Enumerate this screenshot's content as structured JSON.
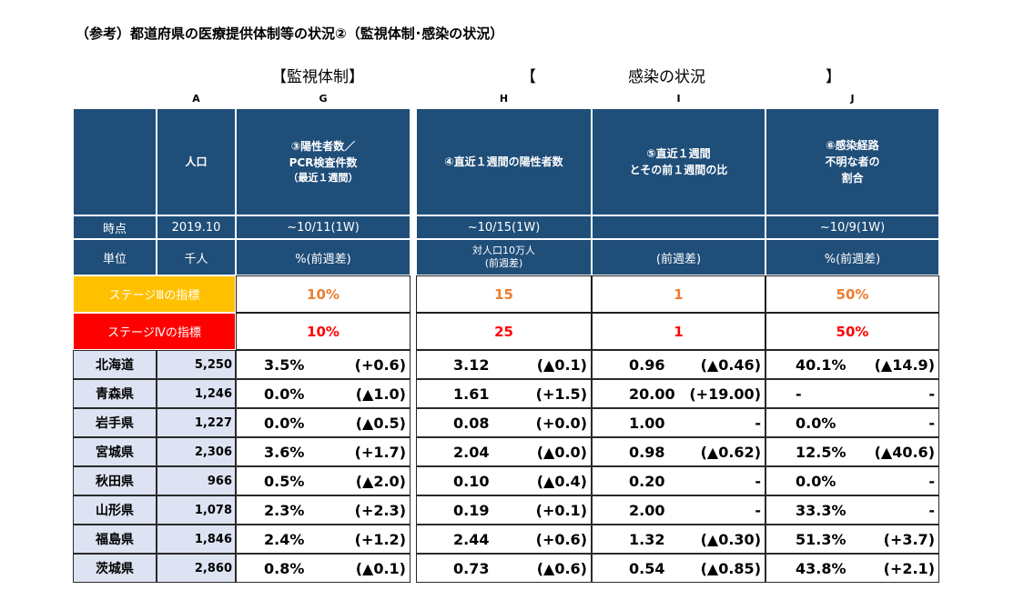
{
  "title": "（参考）都道府県の医療提供体制等の状況②（監視体制･感染の状況）",
  "sections": {
    "kanshi": "【監視体制】",
    "kansen_open": "【",
    "kansen_label": "感染の状況",
    "kansen_close": "】"
  },
  "column_letters": [
    "A",
    "G",
    "H",
    "I",
    "J"
  ],
  "headers": {
    "A": "人口",
    "G_line1": "③陽性者数／",
    "G_line2": "PCR検査件数",
    "G_line3": "（最近１週間）",
    "H": "④直近１週間の陽性者数",
    "I_line1": "⑤直近１週間",
    "I_line2": "とその前１週間の比",
    "J_line1": "⑥感染経路",
    "J_line2": "不明な者の",
    "J_line3": "割合"
  },
  "time_row": {
    "label": "時点",
    "A": "2019.10",
    "G": "~10/11(1W)",
    "H": "~10/15(1W)",
    "I": "",
    "J": "~10/9(1W)"
  },
  "unit_row": {
    "label": "単位",
    "A": "千人",
    "G": "%(前週差)",
    "H_line1": "対人口10万人",
    "H_line2": "(前週差)",
    "I": "(前週差)",
    "J": "%(前週差)"
  },
  "stage3": {
    "label": "ステージⅢの指標",
    "G": "10%",
    "H": "15",
    "I": "1",
    "J": "50%"
  },
  "stage4": {
    "label": "ステージⅣの指標",
    "G": "10%",
    "H": "25",
    "I": "1",
    "J": "50%"
  },
  "rows": [
    {
      "pref": "北海道",
      "pop": "5,250",
      "g": "3.5%",
      "g_diff": "(+0.6)",
      "h": "3.12",
      "h_diff": "(▲0.1)",
      "i": "0.96",
      "i_diff": "(▲0.46)",
      "j": "40.1%",
      "j_diff": "(▲14.9)"
    },
    {
      "pref": "青森県",
      "pop": "1,246",
      "g": "0.0%",
      "g_diff": "(▲1.0)",
      "h": "1.61",
      "h_diff": "(+1.5)",
      "i": "20.00",
      "i_diff": "(+19.00)",
      "j": "-",
      "j_diff": "-"
    },
    {
      "pref": "岩手県",
      "pop": "1,227",
      "g": "0.0%",
      "g_diff": "(▲0.5)",
      "h": "0.08",
      "h_diff": "(+0.0)",
      "i": "1.00",
      "i_diff": "-",
      "j": "0.0%",
      "j_diff": "-"
    },
    {
      "pref": "宮城県",
      "pop": "2,306",
      "g": "3.6%",
      "g_diff": "(+1.7)",
      "h": "2.04",
      "h_diff": "(▲0.0)",
      "i": "0.98",
      "i_diff": "(▲0.62)",
      "j": "12.5%",
      "j_diff": "(▲40.6)"
    },
    {
      "pref": "秋田県",
      "pop": "966",
      "g": "0.5%",
      "g_diff": "(▲2.0)",
      "h": "0.10",
      "h_diff": "(▲0.4)",
      "i": "0.20",
      "i_diff": "-",
      "j": "0.0%",
      "j_diff": "-"
    },
    {
      "pref": "山形県",
      "pop": "1,078",
      "g": "2.3%",
      "g_diff": "(+2.3)",
      "h": "0.19",
      "h_diff": "(+0.1)",
      "i": "2.00",
      "i_diff": "-",
      "j": "33.3%",
      "j_diff": "-"
    },
    {
      "pref": "福島県",
      "pop": "1,846",
      "g": "2.4%",
      "g_diff": "(+1.2)",
      "h": "2.44",
      "h_diff": "(+0.6)",
      "i": "1.32",
      "i_diff": "(▲0.30)",
      "j": "51.3%",
      "j_diff": "(+3.7)"
    },
    {
      "pref": "茨城県",
      "pop": "2,860",
      "g": "0.8%",
      "g_diff": "(▲0.1)",
      "h": "0.73",
      "h_diff": "(▲0.6)",
      "i": "0.54",
      "i_diff": "(▲0.85)",
      "j": "43.8%",
      "j_diff": "(+2.1)"
    }
  ],
  "colors": {
    "header_bg": "#1f4e79",
    "stage3_bg": "#ffc000",
    "stage4_bg": "#ff0000",
    "stage3_value": "#ed7d31",
    "stage4_value": "#ff0000",
    "pref_bg": "#dde3f2"
  }
}
